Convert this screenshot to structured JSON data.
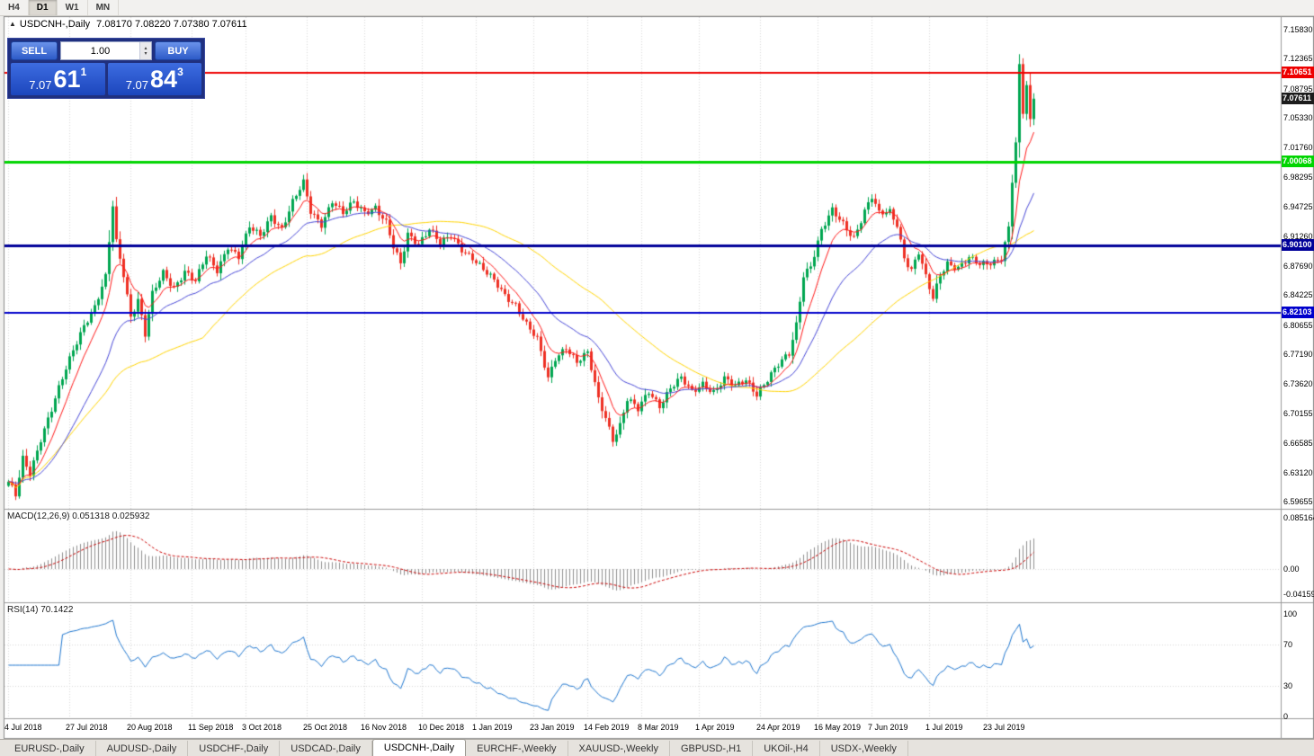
{
  "toolbar": {
    "timeframes": [
      {
        "label": "H4",
        "active": false
      },
      {
        "label": "D1",
        "active": true
      },
      {
        "label": "W1",
        "active": false
      },
      {
        "label": "MN",
        "active": false
      }
    ]
  },
  "chart": {
    "collapse_icon": "▲",
    "title_symbol": "USDCNH-,Daily",
    "ohlc": "7.08170 7.08220 7.07380 7.07611"
  },
  "one_click": {
    "sell_label": "SELL",
    "buy_label": "BUY",
    "volume": "1.00",
    "sell_price": {
      "big": "7.07",
      "pips": "61",
      "sup": "1"
    },
    "buy_price": {
      "big": "7.07",
      "pips": "84",
      "sup": "3"
    }
  },
  "chart_data": {
    "type": "candlestick",
    "title": "USDCNH-,Daily",
    "candle_count": 286,
    "current_price": {
      "value": 7.07611,
      "label": "7.07611"
    },
    "candle_colors": {
      "up": "#00a651",
      "down": "#ee3024"
    },
    "y_axis": {
      "ticks": [
        "7.15830",
        "7.12365",
        "7.08795",
        "7.05330",
        "7.01760",
        "6.98295",
        "6.94725",
        "6.91260",
        "6.87690",
        "6.84225",
        "6.80655",
        "6.77190",
        "6.73620",
        "6.70155",
        "6.66585",
        "6.63120",
        "6.59655"
      ]
    },
    "x_ticks": [
      {
        "label": "4 Jul 2018",
        "index": 0
      },
      {
        "label": "27 Jul 2018",
        "index": 17
      },
      {
        "label": "20 Aug 2018",
        "index": 34
      },
      {
        "label": "11 Sep 2018",
        "index": 51
      },
      {
        "label": "3 Oct 2018",
        "index": 66
      },
      {
        "label": "25 Oct 2018",
        "index": 83
      },
      {
        "label": "16 Nov 2018",
        "index": 99
      },
      {
        "label": "10 Dec 2018",
        "index": 115
      },
      {
        "label": "1 Jan 2019",
        "index": 130
      },
      {
        "label": "23 Jan 2019",
        "index": 146
      },
      {
        "label": "14 Feb 2019",
        "index": 161
      },
      {
        "label": "8 Mar 2019",
        "index": 176
      },
      {
        "label": "1 Apr 2019",
        "index": 192
      },
      {
        "label": "24 Apr 2019",
        "index": 209
      },
      {
        "label": "16 May 2019",
        "index": 225
      },
      {
        "label": "7 Jun 2019",
        "index": 240
      },
      {
        "label": "1 Jul 2019",
        "index": 256
      },
      {
        "label": "23 Jul 2019",
        "index": 272
      }
    ],
    "price_anchors": [
      [
        0,
        6.618
      ],
      [
        2,
        6.603
      ],
      [
        4,
        6.648
      ],
      [
        6,
        6.632
      ],
      [
        9,
        6.672
      ],
      [
        12,
        6.705
      ],
      [
        15,
        6.742
      ],
      [
        18,
        6.778
      ],
      [
        21,
        6.808
      ],
      [
        24,
        6.828
      ],
      [
        27,
        6.862
      ],
      [
        29,
        6.948
      ],
      [
        30,
        6.905
      ],
      [
        32,
        6.868
      ],
      [
        34,
        6.818
      ],
      [
        36,
        6.838
      ],
      [
        38,
        6.795
      ],
      [
        40,
        6.842
      ],
      [
        43,
        6.868
      ],
      [
        46,
        6.852
      ],
      [
        49,
        6.872
      ],
      [
        52,
        6.858
      ],
      [
        55,
        6.888
      ],
      [
        58,
        6.872
      ],
      [
        61,
        6.902
      ],
      [
        64,
        6.888
      ],
      [
        67,
        6.922
      ],
      [
        70,
        6.912
      ],
      [
        73,
        6.938
      ],
      [
        76,
        6.922
      ],
      [
        79,
        6.952
      ],
      [
        82,
        6.975
      ],
      [
        84,
        6.942
      ],
      [
        87,
        6.928
      ],
      [
        90,
        6.955
      ],
      [
        93,
        6.938
      ],
      [
        96,
        6.952
      ],
      [
        99,
        6.942
      ],
      [
        102,
        6.948
      ],
      [
        105,
        6.928
      ],
      [
        107,
        6.898
      ],
      [
        109,
        6.878
      ],
      [
        111,
        6.915
      ],
      [
        114,
        6.905
      ],
      [
        117,
        6.922
      ],
      [
        120,
        6.902
      ],
      [
        123,
        6.912
      ],
      [
        126,
        6.898
      ],
      [
        129,
        6.888
      ],
      [
        132,
        6.872
      ],
      [
        135,
        6.858
      ],
      [
        138,
        6.842
      ],
      [
        141,
        6.832
      ],
      [
        144,
        6.808
      ],
      [
        147,
        6.788
      ],
      [
        150,
        6.742
      ],
      [
        152,
        6.768
      ],
      [
        155,
        6.782
      ],
      [
        158,
        6.762
      ],
      [
        161,
        6.772
      ],
      [
        164,
        6.718
      ],
      [
        166,
        6.698
      ],
      [
        168,
        6.672
      ],
      [
        170,
        6.688
      ],
      [
        172,
        6.718
      ],
      [
        175,
        6.705
      ],
      [
        178,
        6.728
      ],
      [
        181,
        6.712
      ],
      [
        184,
        6.732
      ],
      [
        187,
        6.742
      ],
      [
        190,
        6.726
      ],
      [
        193,
        6.738
      ],
      [
        196,
        6.728
      ],
      [
        199,
        6.742
      ],
      [
        202,
        6.732
      ],
      [
        205,
        6.742
      ],
      [
        208,
        6.726
      ],
      [
        211,
        6.742
      ],
      [
        214,
        6.758
      ],
      [
        217,
        6.772
      ],
      [
        219,
        6.808
      ],
      [
        221,
        6.868
      ],
      [
        223,
        6.878
      ],
      [
        226,
        6.918
      ],
      [
        229,
        6.942
      ],
      [
        232,
        6.928
      ],
      [
        235,
        6.912
      ],
      [
        238,
        6.942
      ],
      [
        240,
        6.958
      ],
      [
        242,
        6.938
      ],
      [
        245,
        6.942
      ],
      [
        247,
        6.928
      ],
      [
        249,
        6.888
      ],
      [
        251,
        6.872
      ],
      [
        253,
        6.892
      ],
      [
        255,
        6.862
      ],
      [
        257,
        6.838
      ],
      [
        259,
        6.868
      ],
      [
        261,
        6.882
      ],
      [
        264,
        6.875
      ],
      [
        267,
        6.885
      ],
      [
        270,
        6.878
      ],
      [
        273,
        6.882
      ],
      [
        276,
        6.888
      ],
      [
        278,
        6.922
      ],
      [
        279,
        6.978
      ],
      [
        280,
        7.022
      ],
      [
        281,
        7.112
      ],
      [
        282,
        7.058
      ],
      [
        283,
        7.092
      ],
      [
        284,
        7.048
      ],
      [
        285,
        7.076
      ]
    ],
    "hlines": [
      {
        "price": 7.10651,
        "label": "7.10651",
        "color": "#ee0000",
        "thickness": 2
      },
      {
        "price": 7.00068,
        "label": "7.00068",
        "color": "#00d500",
        "thickness": 3
      },
      {
        "price": 6.901,
        "label": "6.90100",
        "color": "#000099",
        "thickness": 3
      },
      {
        "price": 6.82103,
        "label": "6.82103",
        "color": "#0000cc",
        "thickness": 2
      }
    ],
    "moving_averages": [
      {
        "type": "ema",
        "period": 8,
        "color": "#ff1a1a"
      },
      {
        "type": "ema",
        "period": 24,
        "color": "#4848d8"
      },
      {
        "type": "sma",
        "period": 55,
        "color": "#ffd500"
      }
    ],
    "indicators": [
      {
        "name": "MACD",
        "label": "MACD(12,26,9) 0.051318 0.025932",
        "ticks": [
          {
            "label": "0.085164",
            "value": 0.085164
          },
          {
            "label": "0.00",
            "value": 0
          },
          {
            "label": "-0.04159",
            "value": -0.04159
          }
        ]
      },
      {
        "name": "RSI",
        "label": "RSI(14) 70.1422",
        "levels": [
          70,
          30
        ],
        "ticks": [
          {
            "label": "100",
            "value": 100
          },
          {
            "label": "70",
            "value": 70
          },
          {
            "label": "30",
            "value": 30
          },
          {
            "label": "0",
            "value": 0
          }
        ]
      }
    ]
  },
  "tabs": [
    {
      "label": "EURUSD-,Daily",
      "active": false
    },
    {
      "label": "AUDUSD-,Daily",
      "active": false
    },
    {
      "label": "USDCHF-,Daily",
      "active": false
    },
    {
      "label": "USDCAD-,Daily",
      "active": false
    },
    {
      "label": "USDCNH-,Daily",
      "active": true
    },
    {
      "label": "EURCHF-,Weekly",
      "active": false
    },
    {
      "label": "XAUUSD-,Weekly",
      "active": false
    },
    {
      "label": "GBPUSD-,H1",
      "active": false
    },
    {
      "label": "UKOil-,H4",
      "active": false
    },
    {
      "label": "USDX-,Weekly",
      "active": false
    }
  ]
}
